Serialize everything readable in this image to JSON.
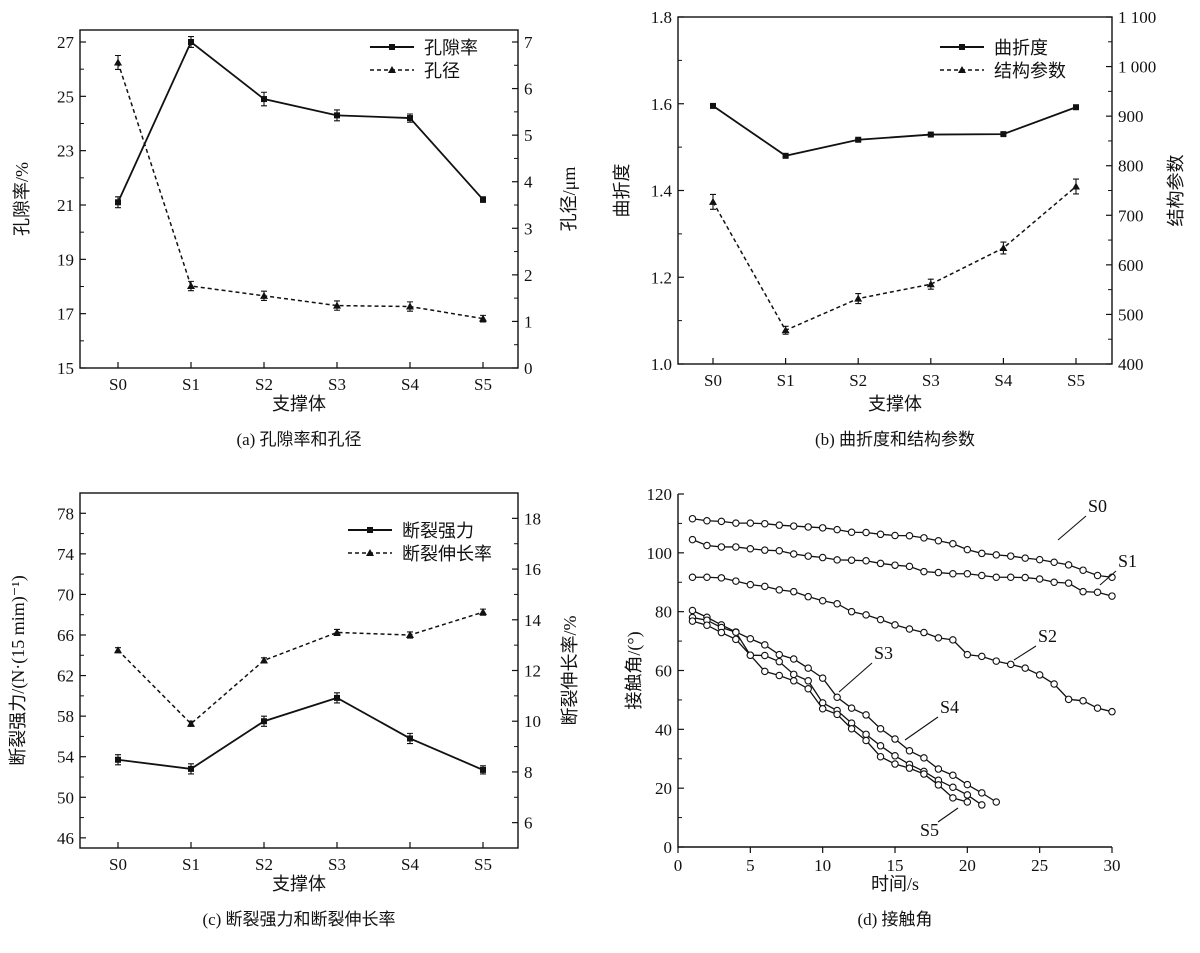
{
  "chart_data": [
    {
      "panel": "a",
      "type": "line",
      "caption": "(a) 孔隙率和孔径",
      "xlabel": "支撑体",
      "ylabel": "孔隙率/%",
      "ylabel_right": "孔径/μm",
      "categories": [
        "S0",
        "S1",
        "S2",
        "S3",
        "S4",
        "S5"
      ],
      "ylim": [
        15,
        27
      ],
      "yticks": [
        15,
        17,
        19,
        21,
        23,
        25,
        27
      ],
      "ylim_right": [
        0,
        7
      ],
      "yticks_right": [
        0,
        1,
        2,
        3,
        4,
        5,
        6,
        7
      ],
      "legend": "top-right",
      "series": [
        {
          "name": "孔隙率",
          "axis": "left",
          "style": "solid",
          "marker": "square",
          "values": [
            21.1,
            27.0,
            24.9,
            24.3,
            24.2,
            21.2
          ],
          "error": [
            0.2,
            0.2,
            0.25,
            0.2,
            0.15,
            0.1
          ]
        },
        {
          "name": "孔径",
          "axis": "right",
          "style": "dashed",
          "marker": "triangle",
          "values": [
            6.56,
            1.76,
            1.55,
            1.34,
            1.32,
            1.06
          ],
          "error": [
            0.15,
            0.1,
            0.1,
            0.1,
            0.1,
            0.07
          ]
        }
      ]
    },
    {
      "panel": "b",
      "type": "line",
      "caption": "(b) 曲折度和结构参数",
      "xlabel": "支撑体",
      "ylabel": "曲折度",
      "ylabel_right": "结构参数",
      "categories": [
        "S0",
        "S1",
        "S2",
        "S3",
        "S4",
        "S5"
      ],
      "ylim": [
        1.0,
        1.8
      ],
      "yticks": [
        1.0,
        1.2,
        1.4,
        1.6,
        1.8
      ],
      "ylim_right": [
        400,
        1100
      ],
      "yticks_right": [
        400,
        500,
        600,
        700,
        800,
        900,
        1000,
        1100
      ],
      "yticks_right_labels": [
        "400",
        "500",
        "600",
        "700",
        "800",
        "900",
        "1 000",
        "1 100"
      ],
      "legend": "top-right",
      "series": [
        {
          "name": "曲折度",
          "axis": "left",
          "style": "solid",
          "marker": "square",
          "values": [
            1.595,
            1.48,
            1.517,
            1.529,
            1.53,
            1.592
          ],
          "error": [
            0.003,
            0.003,
            0.003,
            0.003,
            0.003,
            0.003
          ]
        },
        {
          "name": "结构参数",
          "axis": "right",
          "style": "dashed",
          "marker": "triangle",
          "values": [
            727,
            468,
            532,
            561,
            634,
            758
          ],
          "error": [
            15,
            8,
            10,
            10,
            12,
            15
          ]
        }
      ]
    },
    {
      "panel": "c",
      "type": "line",
      "caption": "(c) 断裂强力和断裂伸长率",
      "xlabel": "支撑体",
      "ylabel": "断裂强力/(N·(15 mim)⁻¹)",
      "ylabel_right": "断裂伸长率/%",
      "categories": [
        "S0",
        "S1",
        "S2",
        "S3",
        "S4",
        "S5"
      ],
      "ylim": [
        45,
        80
      ],
      "yticks": [
        46,
        50,
        54,
        58,
        62,
        66,
        70,
        74,
        78
      ],
      "ylim_right": [
        5,
        19
      ],
      "yticks_right": [
        6,
        8,
        10,
        12,
        14,
        16,
        18
      ],
      "legend": "top-right",
      "series": [
        {
          "name": "断裂强力",
          "axis": "left",
          "style": "solid",
          "marker": "square",
          "values": [
            53.7,
            52.8,
            57.5,
            59.8,
            55.8,
            52.7
          ],
          "error": [
            0.5,
            0.5,
            0.5,
            0.5,
            0.5,
            0.4
          ]
        },
        {
          "name": "断裂伸长率",
          "axis": "right",
          "style": "dashed",
          "marker": "triangle",
          "values": [
            12.8,
            9.9,
            12.4,
            13.5,
            13.4,
            14.3
          ],
          "error": [
            0.1,
            0.1,
            0.1,
            0.12,
            0.12,
            0.12
          ]
        }
      ]
    },
    {
      "panel": "d",
      "type": "line",
      "caption": "(d) 接触角",
      "xlabel": "时间/s",
      "ylabel": "接触角/(°)",
      "xlim": [
        0,
        30
      ],
      "xticks": [
        0,
        5,
        10,
        15,
        20,
        25,
        30
      ],
      "ylim": [
        0,
        120
      ],
      "yticks": [
        0,
        20,
        40,
        60,
        80,
        100,
        120
      ],
      "series": [
        {
          "name": "S0",
          "x_start": 1,
          "values": [
            111.6,
            110.9,
            110.7,
            110.1,
            110.1,
            109.9,
            109.4,
            109.1,
            108.8,
            108.5,
            107.9,
            107.0,
            106.9,
            106.3,
            105.9,
            105.8,
            105.1,
            104.1,
            103.1,
            101.1,
            99.8,
            99.3,
            98.9,
            98.2,
            97.7,
            96.8,
            95.9,
            94.1,
            92.3,
            91.7
          ]
        },
        {
          "name": "S1",
          "x_start": 1,
          "values": [
            104.5,
            102.5,
            102.0,
            102.0,
            101.4,
            100.9,
            100.7,
            99.6,
            98.9,
            98.4,
            97.6,
            97.5,
            97.3,
            96.4,
            95.8,
            95.4,
            93.6,
            93.3,
            92.9,
            92.9,
            92.3,
            91.7,
            91.7,
            91.6,
            91.1,
            90.0,
            89.7,
            86.8,
            86.6,
            85.3
          ]
        },
        {
          "name": "S2",
          "x_start": 1,
          "values": [
            91.7,
            91.7,
            91.5,
            90.4,
            89.2,
            88.6,
            87.4,
            86.8,
            85.1,
            83.7,
            82.7,
            80.0,
            78.9,
            77.3,
            75.5,
            74.1,
            72.9,
            71.1,
            70.4,
            65.4,
            64.8,
            63.2,
            62.1,
            60.8,
            58.5,
            55.4,
            50.2,
            49.7,
            47.2,
            46.0
          ]
        },
        {
          "name": "S3",
          "x_start": 1,
          "values": [
            80.4,
            78.1,
            75.5,
            73.1,
            70.8,
            68.7,
            65.4,
            63.9,
            60.8,
            57.4,
            50.9,
            47.2,
            44.9,
            40.2,
            36.7,
            32.7,
            30.3,
            26.5,
            24.4,
            21.2,
            18.4,
            15.3
          ]
        },
        {
          "name": "S4",
          "x_start": 1,
          "values": [
            78.0,
            77.1,
            74.6,
            73.0,
            65.2,
            65.1,
            63.0,
            58.7,
            56.5,
            49.0,
            46.4,
            42.1,
            38.3,
            34.4,
            31.0,
            28.1,
            25.7,
            22.7,
            20.3,
            17.7,
            14.3
          ]
        },
        {
          "name": "S5",
          "x_start": 1,
          "values": [
            76.8,
            75.4,
            72.9,
            70.6,
            65.2,
            59.7,
            58.3,
            56.5,
            53.8,
            47.0,
            45.1,
            40.2,
            36.2,
            30.7,
            28.2,
            26.8,
            24.8,
            21.1,
            16.7,
            15.3
          ]
        }
      ]
    }
  ]
}
